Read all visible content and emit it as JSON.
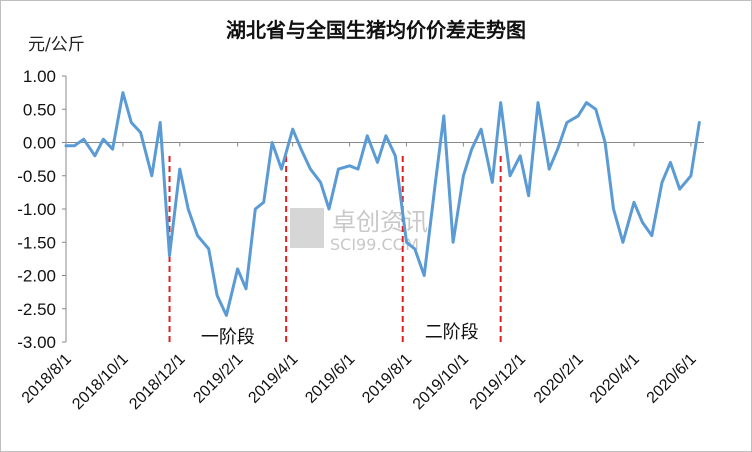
{
  "chart_data": {
    "type": "line",
    "title": "湖北省与全国生猪均价价差走势图",
    "ylabel": "元/公斤",
    "xlabel": "",
    "ylim": [
      -3.0,
      1.0
    ],
    "yticks": [
      "1.00",
      "0.50",
      "0.00",
      "-0.50",
      "-1.00",
      "-1.50",
      "-2.00",
      "-2.50",
      "-3.00"
    ],
    "ytick_values": [
      1.0,
      0.5,
      0.0,
      -0.5,
      -1.0,
      -1.5,
      -2.0,
      -2.5,
      -3.0
    ],
    "x_categories": [
      "2018/8/1",
      "2018/10/1",
      "2018/12/1",
      "2019/2/1",
      "2019/4/1",
      "2019/6/1",
      "2019/8/1",
      "2019/10/1",
      "2019/12/1",
      "2020/2/1",
      "2020/4/1",
      "2020/6/1"
    ],
    "grid": false,
    "series": [
      {
        "color": "#5b9bd5",
        "x": [
          "2018/8/1",
          "2018/8/10",
          "2018/8/20",
          "2018/9/1",
          "2018/9/10",
          "2018/9/20",
          "2018/10/1",
          "2018/10/10",
          "2018/10/20",
          "2018/11/1",
          "2018/11/10",
          "2018/11/20",
          "2018/12/1",
          "2018/12/10",
          "2018/12/20",
          "2019/1/1",
          "2019/1/10",
          "2019/1/20",
          "2019/2/1",
          "2019/2/10",
          "2019/2/20",
          "2019/3/1",
          "2019/3/10",
          "2019/3/20",
          "2019/4/1",
          "2019/4/10",
          "2019/4/20",
          "2019/5/1",
          "2019/5/10",
          "2019/5/20",
          "2019/6/1",
          "2019/6/10",
          "2019/6/20",
          "2019/7/1",
          "2019/7/10",
          "2019/7/20",
          "2019/8/1",
          "2019/8/10",
          "2019/8/20",
          "2019/9/1",
          "2019/9/10",
          "2019/9/20",
          "2019/10/1",
          "2019/10/10",
          "2019/10/20",
          "2019/11/1",
          "2019/11/10",
          "2019/11/20",
          "2019/12/1",
          "2019/12/10",
          "2019/12/20",
          "2020/1/1",
          "2020/1/10",
          "2020/1/20",
          "2020/2/1",
          "2020/2/10",
          "2020/2/20",
          "2020/3/1",
          "2020/3/10",
          "2020/3/20",
          "2020/4/1",
          "2020/4/10",
          "2020/4/20",
          "2020/5/1",
          "2020/5/10",
          "2020/5/20",
          "2020/6/1",
          "2020/6/10"
        ],
        "values": [
          -0.05,
          -0.05,
          0.05,
          -0.2,
          0.05,
          -0.1,
          0.75,
          0.3,
          0.15,
          -0.5,
          0.3,
          -1.7,
          -0.4,
          -1.0,
          -1.4,
          -1.6,
          -2.3,
          -2.6,
          -1.9,
          -2.2,
          -1.0,
          -0.9,
          0.0,
          -0.4,
          0.2,
          -0.1,
          -0.4,
          -0.6,
          -1.0,
          -0.4,
          -0.35,
          -0.4,
          0.1,
          -0.3,
          0.1,
          -0.2,
          -1.5,
          -1.6,
          -2.0,
          -0.6,
          0.4,
          -1.5,
          -0.5,
          -0.1,
          0.2,
          -0.6,
          0.6,
          -0.5,
          -0.2,
          -0.8,
          0.6,
          -0.4,
          -0.1,
          0.3,
          0.4,
          0.6,
          0.5,
          0.0,
          -1.0,
          -1.5,
          -0.9,
          -1.2,
          -1.4,
          -0.6,
          -0.3,
          -0.7,
          -0.5,
          0.3
        ]
      }
    ],
    "annotations": [
      {
        "label": "一阶段",
        "start": "2018/11/20",
        "end": "2019/3/25"
      },
      {
        "label": "二阶段",
        "start": "2019/7/28",
        "end": "2019/11/10"
      }
    ],
    "annotation_line_color": "#e02020",
    "watermark": {
      "line1": "卓创资讯",
      "line2": "SCI99.COM"
    }
  }
}
